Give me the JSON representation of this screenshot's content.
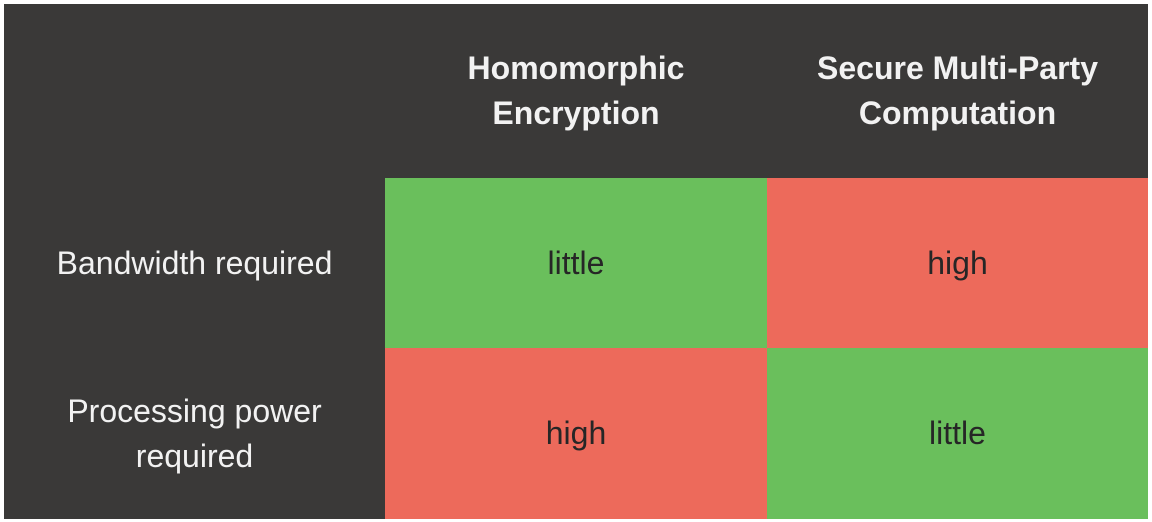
{
  "columns": [
    {
      "label": "Homomorphic\nEncryption"
    },
    {
      "label": "Secure Multi-Party\nComputation"
    }
  ],
  "rows": [
    {
      "label": "Bandwidth required",
      "cells": [
        "little",
        "high"
      ]
    },
    {
      "label": "Processing power\nrequired",
      "cells": [
        "high",
        "little"
      ]
    }
  ],
  "colors": {
    "background": "#3a3938",
    "favorable": "#6abf5c",
    "unfavorable": "#ed6a5b"
  }
}
